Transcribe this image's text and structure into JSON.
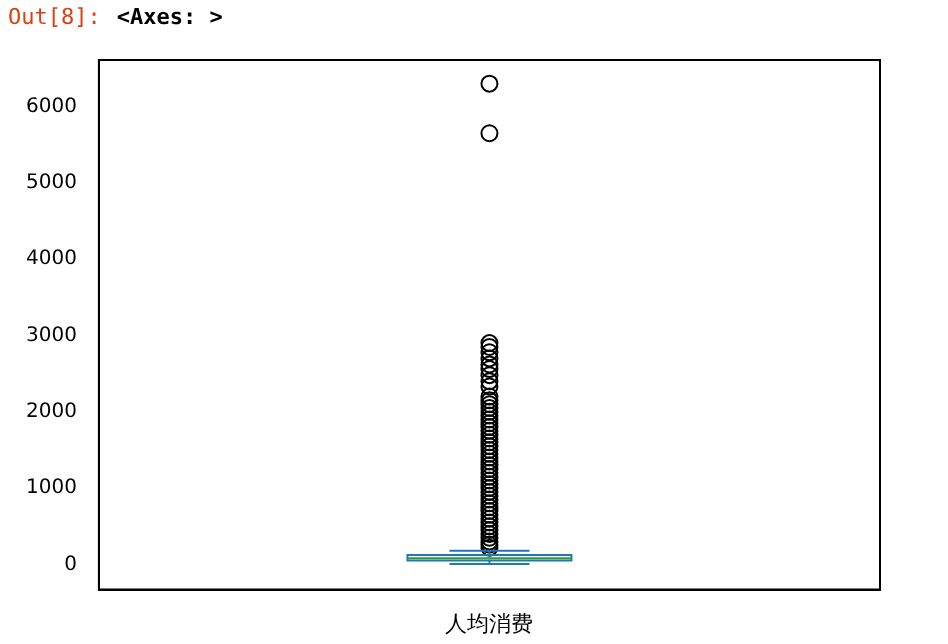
{
  "chart_data": {
    "type": "box",
    "annotations": [
      "Out[8]:",
      "<Axes: >"
    ],
    "categories": [
      "人均消费"
    ],
    "ylim": [
      -330,
      6610
    ],
    "yticks": [
      0,
      1000,
      2000,
      3000,
      4000,
      5000,
      6000
    ],
    "grid": false,
    "legend": false,
    "marker": "circle",
    "series": [
      {
        "color": "#1f77b4",
        "boxes": [
          {
            "low": 5,
            "q1": 50,
            "median": 80,
            "q3": 125,
            "high": 180,
            "outliers": [
              6300,
              5650,
              2900,
              2850,
              2780,
              2700,
              2620,
              2560,
              2480,
              2400,
              2330,
              2200,
              2150,
              2100,
              2050,
              2000,
              1950,
              1900,
              1850,
              1800,
              1750,
              1700,
              1650,
              1600,
              1550,
              1500,
              1450,
              1400,
              1350,
              1300,
              1250,
              1200,
              1150,
              1100,
              1050,
              1000,
              950,
              900,
              850,
              800,
              750,
              700,
              650,
              600,
              550,
              500,
              450,
              400,
              350,
              300,
              260,
              220
            ]
          }
        ]
      }
    ]
  }
}
